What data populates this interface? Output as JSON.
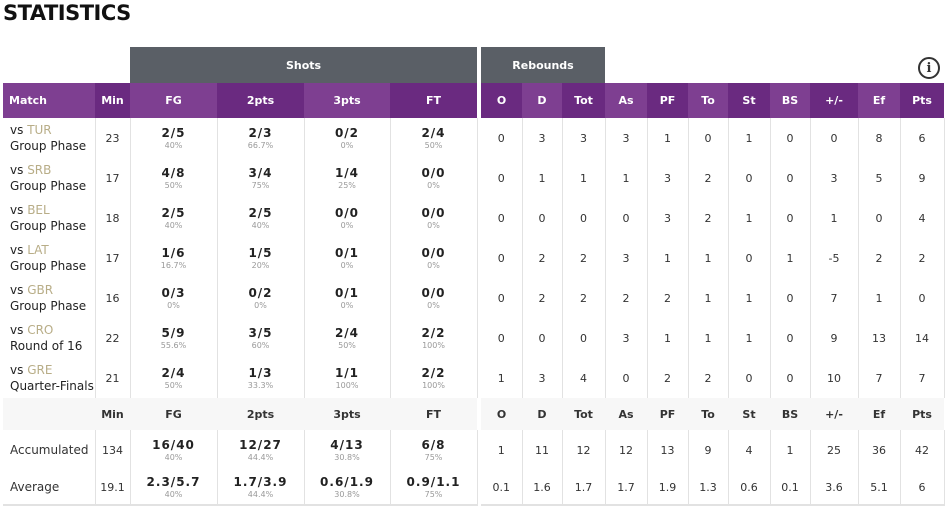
{
  "title": "STATISTICS",
  "groups": {
    "shots": "Shots",
    "rebounds": "Rebounds"
  },
  "info_icon": "info-circle-icon",
  "colors": {
    "header_light": "#7e3f91",
    "header_dark": "#6a2a80",
    "group_header": "#5a5f66",
    "opponent": "#b8ad87"
  },
  "columns": {
    "match": "Match",
    "min": "Min",
    "fg": "FG",
    "p2": "2pts",
    "p3": "3pts",
    "ft": "FT",
    "o": "O",
    "d": "D",
    "tot": "Tot",
    "as": "As",
    "pf": "PF",
    "to": "To",
    "st": "St",
    "bs": "BS",
    "pm": "+/-",
    "ef": "Ef",
    "pts": "Pts"
  },
  "rows": [
    {
      "vs": "vs",
      "opp": "TUR",
      "phase": "Group Phase",
      "min": "23",
      "fg": [
        "2/5",
        "40%"
      ],
      "p2": [
        "2/3",
        "66.7%"
      ],
      "p3": [
        "0/2",
        "0%"
      ],
      "ft": [
        "2/4",
        "50%"
      ],
      "o": "0",
      "d": "3",
      "tot": "3",
      "as": "3",
      "pf": "1",
      "to": "0",
      "st": "1",
      "bs": "0",
      "pm": "0",
      "ef": "8",
      "pts": "6"
    },
    {
      "vs": "vs",
      "opp": "SRB",
      "phase": "Group Phase",
      "min": "17",
      "fg": [
        "4/8",
        "50%"
      ],
      "p2": [
        "3/4",
        "75%"
      ],
      "p3": [
        "1/4",
        "25%"
      ],
      "ft": [
        "0/0",
        "0%"
      ],
      "o": "0",
      "d": "1",
      "tot": "1",
      "as": "1",
      "pf": "3",
      "to": "2",
      "st": "0",
      "bs": "0",
      "pm": "3",
      "ef": "5",
      "pts": "9"
    },
    {
      "vs": "vs",
      "opp": "BEL",
      "phase": "Group Phase",
      "min": "18",
      "fg": [
        "2/5",
        "40%"
      ],
      "p2": [
        "2/5",
        "40%"
      ],
      "p3": [
        "0/0",
        "0%"
      ],
      "ft": [
        "0/0",
        "0%"
      ],
      "o": "0",
      "d": "0",
      "tot": "0",
      "as": "0",
      "pf": "3",
      "to": "2",
      "st": "1",
      "bs": "0",
      "pm": "1",
      "ef": "0",
      "pts": "4"
    },
    {
      "vs": "vs",
      "opp": "LAT",
      "phase": "Group Phase",
      "min": "17",
      "fg": [
        "1/6",
        "16.7%"
      ],
      "p2": [
        "1/5",
        "20%"
      ],
      "p3": [
        "0/1",
        "0%"
      ],
      "ft": [
        "0/0",
        "0%"
      ],
      "o": "0",
      "d": "2",
      "tot": "2",
      "as": "3",
      "pf": "1",
      "to": "1",
      "st": "0",
      "bs": "1",
      "pm": "-5",
      "ef": "2",
      "pts": "2"
    },
    {
      "vs": "vs",
      "opp": "GBR",
      "phase": "Group Phase",
      "min": "16",
      "fg": [
        "0/3",
        "0%"
      ],
      "p2": [
        "0/2",
        "0%"
      ],
      "p3": [
        "0/1",
        "0%"
      ],
      "ft": [
        "0/0",
        "0%"
      ],
      "o": "0",
      "d": "2",
      "tot": "2",
      "as": "2",
      "pf": "2",
      "to": "1",
      "st": "1",
      "bs": "0",
      "pm": "7",
      "ef": "1",
      "pts": "0"
    },
    {
      "vs": "vs",
      "opp": "CRO",
      "phase": "Round of 16",
      "min": "22",
      "fg": [
        "5/9",
        "55.6%"
      ],
      "p2": [
        "3/5",
        "60%"
      ],
      "p3": [
        "2/4",
        "50%"
      ],
      "ft": [
        "2/2",
        "100%"
      ],
      "o": "0",
      "d": "0",
      "tot": "0",
      "as": "3",
      "pf": "1",
      "to": "1",
      "st": "1",
      "bs": "0",
      "pm": "9",
      "ef": "13",
      "pts": "14"
    },
    {
      "vs": "vs",
      "opp": "GRE",
      "phase": "Quarter-Finals",
      "min": "21",
      "fg": [
        "2/4",
        "50%"
      ],
      "p2": [
        "1/3",
        "33.3%"
      ],
      "p3": [
        "1/1",
        "100%"
      ],
      "ft": [
        "2/2",
        "100%"
      ],
      "o": "1",
      "d": "3",
      "tot": "4",
      "as": "0",
      "pf": "2",
      "to": "2",
      "st": "0",
      "bs": "0",
      "pm": "10",
      "ef": "7",
      "pts": "7"
    }
  ],
  "summary": [
    {
      "label": "Accumulated",
      "min": "134",
      "fg": [
        "16/40",
        "40%"
      ],
      "p2": [
        "12/27",
        "44.4%"
      ],
      "p3": [
        "4/13",
        "30.8%"
      ],
      "ft": [
        "6/8",
        "75%"
      ],
      "o": "1",
      "d": "11",
      "tot": "12",
      "as": "12",
      "pf": "13",
      "to": "9",
      "st": "4",
      "bs": "1",
      "pm": "25",
      "ef": "36",
      "pts": "42"
    },
    {
      "label": "Average",
      "min": "19.1",
      "fg": [
        "2.3/5.7",
        "40%"
      ],
      "p2": [
        "1.7/3.9",
        "44.4%"
      ],
      "p3": [
        "0.6/1.9",
        "30.8%"
      ],
      "ft": [
        "0.9/1.1",
        "75%"
      ],
      "o": "0.1",
      "d": "1.6",
      "tot": "1.7",
      "as": "1.7",
      "pf": "1.9",
      "to": "1.3",
      "st": "0.6",
      "bs": "0.1",
      "pm": "3.6",
      "ef": "5.1",
      "pts": "6"
    }
  ]
}
